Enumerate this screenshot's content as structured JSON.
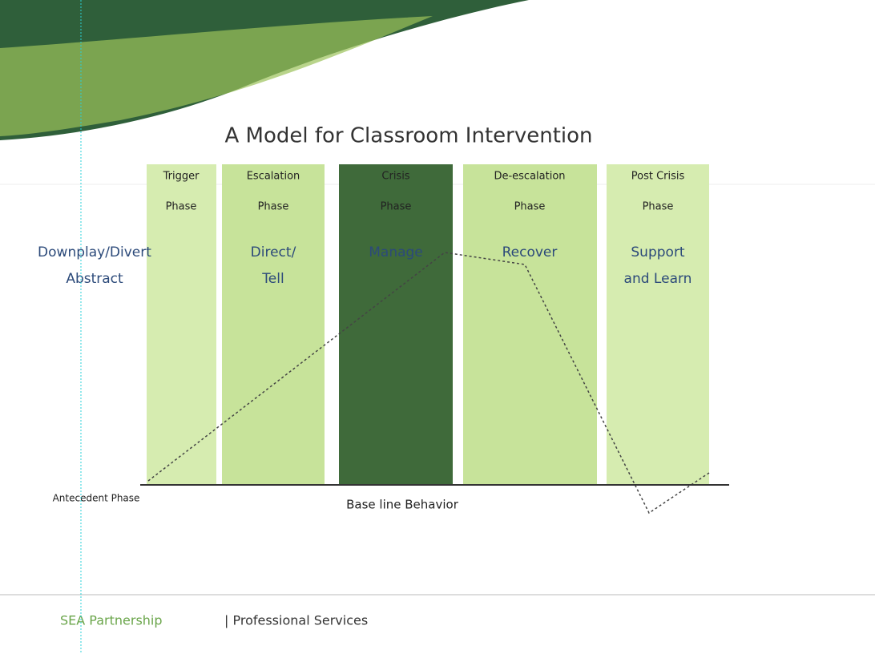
{
  "title": "A Model for Classroom Intervention",
  "phases": [
    {
      "name": "Trigger",
      "word": "Phase"
    },
    {
      "name": "Escalation",
      "word": "Phase"
    },
    {
      "name": "Crisis",
      "word": "Phase"
    },
    {
      "name": "De-escalation",
      "word": "Phase"
    },
    {
      "name": "Post Crisis",
      "word": "Phase"
    }
  ],
  "left_action": {
    "line1": "Downplay/Divert",
    "line2": "Abstract"
  },
  "actions": [
    {
      "line1": "Direct/",
      "line2": "Tell"
    },
    {
      "line1": "Manage"
    },
    {
      "line1": "Recover"
    },
    {
      "line1": "Support",
      "line2": "and Learn"
    }
  ],
  "side_label": "Antecedent Phase",
  "baseline_label": "Base line Behavior",
  "footer": {
    "left": "SEA Partnership",
    "right": "| Professional Services"
  }
}
